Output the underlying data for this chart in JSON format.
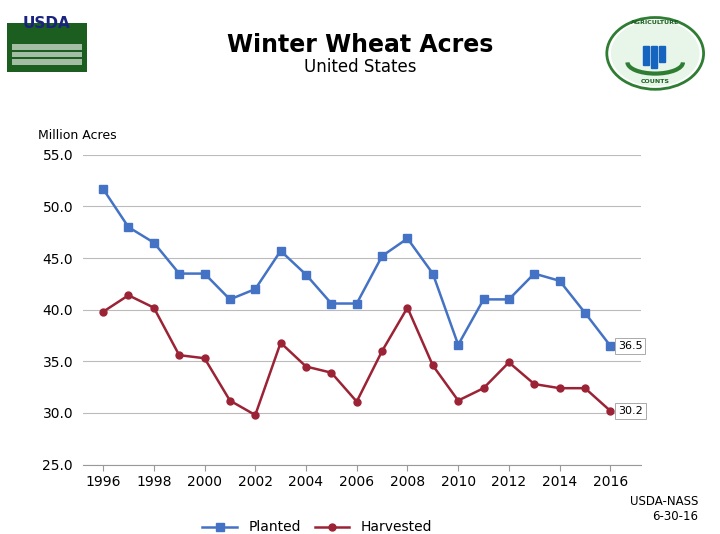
{
  "title": "Winter Wheat Acres",
  "subtitle": "United States",
  "ylabel": "Million Acres",
  "years": [
    1996,
    1997,
    1998,
    1999,
    2000,
    2001,
    2002,
    2003,
    2004,
    2005,
    2006,
    2007,
    2008,
    2009,
    2010,
    2011,
    2012,
    2013,
    2014,
    2015,
    2016
  ],
  "planted": [
    51.7,
    48.0,
    46.5,
    43.5,
    43.5,
    41.0,
    42.0,
    45.7,
    43.4,
    40.6,
    40.6,
    45.2,
    46.9,
    43.5,
    36.6,
    41.0,
    41.0,
    43.5,
    42.8,
    39.7,
    36.5
  ],
  "harvested": [
    39.8,
    41.4,
    40.2,
    35.6,
    35.3,
    31.2,
    29.8,
    36.8,
    34.5,
    33.9,
    31.1,
    36.0,
    40.2,
    34.6,
    31.2,
    32.4,
    34.9,
    32.8,
    32.4,
    32.4,
    30.2
  ],
  "planted_color": "#4472C4",
  "harvested_color": "#9B2335",
  "ylim": [
    25.0,
    55.0
  ],
  "yticks": [
    25.0,
    30.0,
    35.0,
    40.0,
    45.0,
    50.0,
    55.0
  ],
  "xticks": [
    1996,
    1998,
    2000,
    2002,
    2004,
    2006,
    2008,
    2010,
    2012,
    2014,
    2016
  ],
  "grid_color": "#BBBBBB",
  "bg_color": "#FFFFFF",
  "annotation_planted_2016": "36.5",
  "annotation_harvested_2016": "30.2",
  "source_text": "USDA-NASS\n6-30-16",
  "legend_planted": "Planted",
  "legend_harvested": "Harvested",
  "usda_text_line1": "USDA",
  "usda_box_color": "#1B5E20",
  "title_fontsize": 17,
  "subtitle_fontsize": 12,
  "tick_fontsize": 10,
  "ylabel_fontsize": 9
}
